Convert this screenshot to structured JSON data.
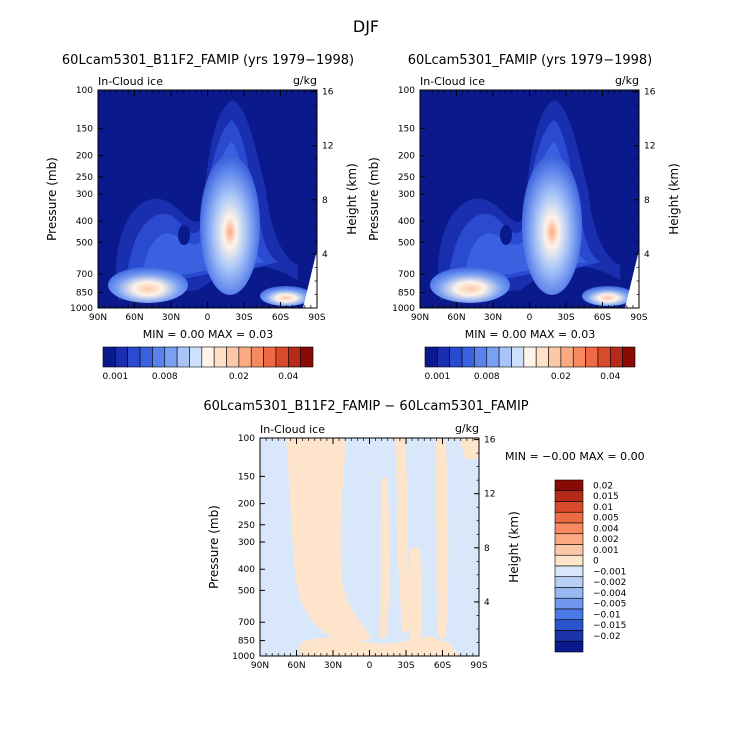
{
  "figure_title": "DJF",
  "colors": {
    "frame": "#000000",
    "diff_pos": "#ffe4cc",
    "diff_neg": "#d8e8fa",
    "deep": "#0a1a8c"
  },
  "chart_data": [
    {
      "type": "contour",
      "title": "60Lcam5301_B11F2_FAMIP (yrs 1979−1998)",
      "left_label": "In-Cloud ice",
      "right_label": "g/kg",
      "ylabel": "Pressure (mb)",
      "y2label": "Height (km)",
      "x_ticks": [
        "90N",
        "60N",
        "30N",
        "0",
        "30S",
        "60S",
        "90S"
      ],
      "p_ticks": [
        "100",
        "150",
        "200",
        "250",
        "300",
        "400",
        "500",
        "700",
        "850",
        "1000"
      ],
      "p_values": [
        100,
        150,
        200,
        250,
        300,
        400,
        500,
        700,
        850,
        1000
      ],
      "z_ticks": [
        "16",
        "12",
        "8",
        "4"
      ],
      "z_values": [
        16,
        12,
        8,
        4
      ],
      "stats_text": "MIN =    0.00   MAX =    0.03",
      "min": 0.0,
      "max": 0.03,
      "colorbar_levels": [
        0.001,
        0.002,
        0.004,
        0.006,
        0.008,
        0.01,
        0.012,
        0.014,
        0.016,
        0.018,
        0.02,
        0.025,
        0.03,
        0.035,
        0.04,
        0.045,
        0.05
      ],
      "colorbar_labels": [
        "0.001",
        "0.008",
        "0.02",
        "0.04"
      ],
      "colorbar_colors": [
        "#0a1a8c",
        "#1a2fb0",
        "#2a4ad0",
        "#3a62e0",
        "#5a82ea",
        "#7aa0f2",
        "#a8c4f8",
        "#cfe0fc",
        "#fdf3e8",
        "#ffe0c8",
        "#fdc8a8",
        "#fbaa84",
        "#f78a60",
        "#ee6a44",
        "#d84a2c",
        "#b52a18",
        "#8a0a06"
      ]
    },
    {
      "type": "contour",
      "title": "60Lcam5301_FAMIP (yrs 1979−1998)",
      "left_label": "In-Cloud ice",
      "right_label": "g/kg",
      "ylabel": "Pressure (mb)",
      "y2label": "Height (km)",
      "x_ticks": [
        "90N",
        "60N",
        "30N",
        "0",
        "30S",
        "60S",
        "90S"
      ],
      "p_ticks": [
        "100",
        "150",
        "200",
        "250",
        "300",
        "400",
        "500",
        "700",
        "850",
        "1000"
      ],
      "p_values": [
        100,
        150,
        200,
        250,
        300,
        400,
        500,
        700,
        850,
        1000
      ],
      "z_ticks": [
        "16",
        "12",
        "8",
        "4"
      ],
      "z_values": [
        16,
        12,
        8,
        4
      ],
      "stats_text": "MIN =    0.00   MAX =    0.03",
      "min": 0.0,
      "max": 0.03,
      "colorbar_levels": [
        0.001,
        0.002,
        0.004,
        0.006,
        0.008,
        0.01,
        0.012,
        0.014,
        0.016,
        0.018,
        0.02,
        0.025,
        0.03,
        0.035,
        0.04,
        0.045,
        0.05
      ],
      "colorbar_labels": [
        "0.001",
        "0.008",
        "0.02",
        "0.04"
      ],
      "colorbar_colors": [
        "#0a1a8c",
        "#1a2fb0",
        "#2a4ad0",
        "#3a62e0",
        "#5a82ea",
        "#7aa0f2",
        "#a8c4f8",
        "#cfe0fc",
        "#fdf3e8",
        "#ffe0c8",
        "#fdc8a8",
        "#fbaa84",
        "#f78a60",
        "#ee6a44",
        "#d84a2c",
        "#b52a18",
        "#8a0a06"
      ]
    },
    {
      "type": "contour",
      "title": "60Lcam5301_B11F2_FAMIP − 60Lcam5301_FAMIP",
      "left_label": "In-Cloud ice",
      "right_label": "g/kg",
      "ylabel": "Pressure (mb)",
      "y2label": "Height (km)",
      "x_ticks": [
        "90N",
        "60N",
        "30N",
        "0",
        "30S",
        "60S",
        "90S"
      ],
      "p_ticks": [
        "100",
        "150",
        "200",
        "250",
        "300",
        "400",
        "500",
        "700",
        "850",
        "1000"
      ],
      "p_values": [
        100,
        150,
        200,
        250,
        300,
        400,
        500,
        700,
        850,
        1000
      ],
      "z_ticks": [
        "16",
        "12",
        "8",
        "4"
      ],
      "z_values": [
        16,
        12,
        8,
        4
      ],
      "stats_text": "MIN =   −0.00   MAX =    0.00",
      "min": -0.0,
      "max": 0.0,
      "colorbar_labels": [
        "0.02",
        "0.015",
        "0.01",
        "0.005",
        "0.004",
        "0.002",
        "0.001",
        "0",
        "−0.001",
        "−0.002",
        "−0.004",
        "−0.005",
        "−0.01",
        "−0.015",
        "−0.02"
      ],
      "colorbar_colors": [
        "#8a0a06",
        "#b52a18",
        "#d84a2c",
        "#ee6a44",
        "#f78a60",
        "#fbaa84",
        "#fdc8a8",
        "#ffe4cc",
        "#d8e8fa",
        "#b8d0f6",
        "#98b8f2",
        "#7098ec",
        "#4a78e4",
        "#2a54cc",
        "#1a34a8",
        "#0a1a8c"
      ]
    }
  ]
}
